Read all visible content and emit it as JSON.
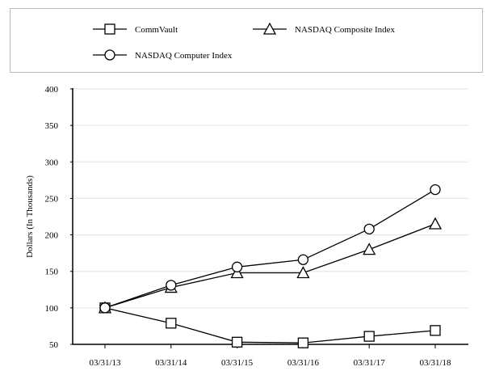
{
  "chart_data": {
    "type": "line",
    "title": "",
    "xlabel": "",
    "ylabel": "Dollars (In Thousands)",
    "categories": [
      "03/31/13",
      "03/31/14",
      "03/31/15",
      "03/31/16",
      "03/31/17",
      "03/31/18"
    ],
    "ylim": [
      50,
      400
    ],
    "yticks": [
      50,
      100,
      150,
      200,
      250,
      300,
      350,
      400
    ],
    "grid": true,
    "legend_placement": "top",
    "series": [
      {
        "name": "CommVault",
        "marker": "square",
        "values": [
          100,
          79,
          53,
          52,
          61,
          69
        ]
      },
      {
        "name": "NASDAQ Composite Index",
        "marker": "triangle",
        "values": [
          100,
          128,
          148,
          148,
          180,
          215
        ]
      },
      {
        "name": "NASDAQ Computer Index",
        "marker": "circle",
        "values": [
          100,
          131,
          156,
          166,
          208,
          262
        ]
      }
    ],
    "colors": {
      "line": "#000000",
      "grid": "#e0e0e0",
      "legend_border": "#bbbbbb"
    }
  }
}
